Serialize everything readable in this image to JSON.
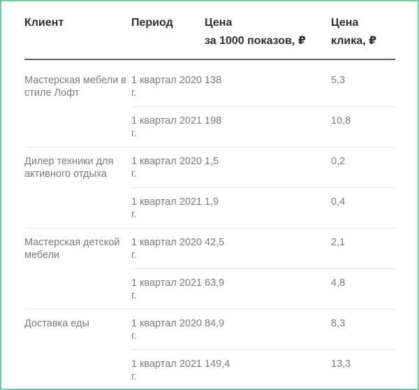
{
  "headers": {
    "client": "Клиент",
    "period": "Период",
    "cpm_line1": "Цена",
    "cpm_line2": "за 1000 показов, ₽",
    "cpc_line1": "Цена",
    "cpc_line2": "клика, ₽"
  },
  "groups": [
    {
      "client": "Мастерская мебели в стиле Лофт",
      "rows": [
        {
          "period": "1 квартал 2020 г.",
          "cpm": "138",
          "cpc": "5,3"
        },
        {
          "period": "1 квартал 2021 г.",
          "cpm": "198",
          "cpc": "10,8"
        }
      ]
    },
    {
      "client": "Дилер техники для активного отдыха",
      "rows": [
        {
          "period": "1 квартал 2020 г.",
          "cpm": "1,5",
          "cpc": "0,2"
        },
        {
          "period": "1 квартал 2021 г.",
          "cpm": "1,9",
          "cpc": "0,4"
        }
      ]
    },
    {
      "client": "Мастерская детской мебели",
      "rows": [
        {
          "period": "1 квартал 2020 г.",
          "cpm": "42,5",
          "cpc": "2,1"
        },
        {
          "period": "1 квартал 2021 г.",
          "cpm": "63,9",
          "cpc": "4,8"
        }
      ]
    },
    {
      "client": "Доставка еды",
      "rows": [
        {
          "period": "1 квартал 2020 г.",
          "cpm": "84,9",
          "cpc": "8,3"
        },
        {
          "period": "1 квартал 2021 г.",
          "cpm": "149,4",
          "cpc": "13,3"
        }
      ]
    }
  ]
}
